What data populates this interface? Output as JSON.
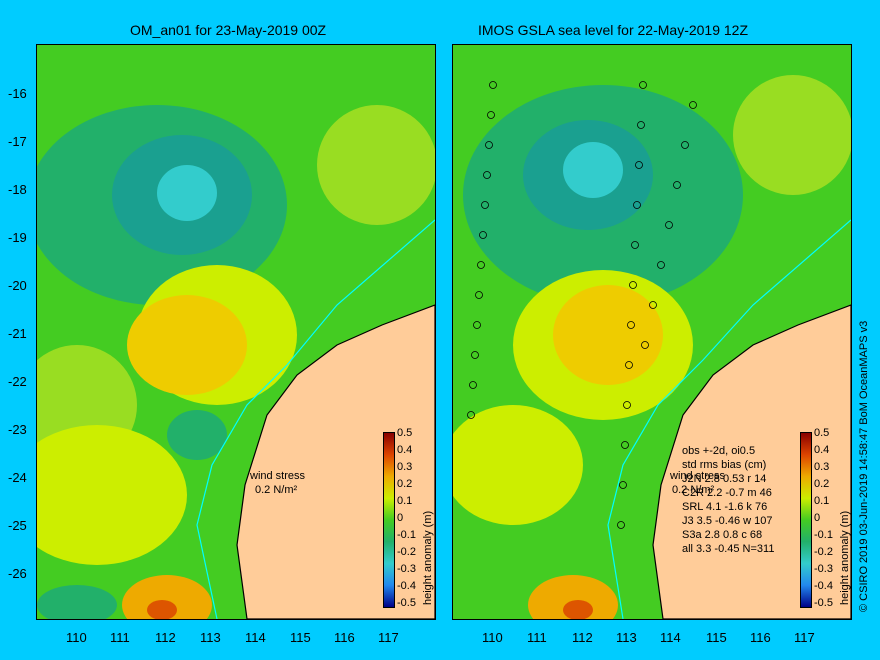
{
  "left_panel": {
    "title": "OM_an01 for 23-May-2019 00Z",
    "wind_label": "wind stress",
    "wind_scale": "0.2 N/m²"
  },
  "right_panel": {
    "title": "IMOS GSLA sea level  for 22-May-2019 12Z",
    "wind_label": "wind stress",
    "wind_scale": "0.2 N/m²",
    "stats": {
      "header1": "obs +-2d, oi0.5",
      "header2": "std rms bias (cm)",
      "rows": [
        "J2N    2.8  0.53  r 14",
        "C2R    2.2  -0.7  m 46",
        "SRL    4.1  -1.6  k 76",
        "J3     3.5  -0.46  w 107",
        "S3a    2.8  0.8  c 68",
        "all    3.3  -0.45  N=311"
      ]
    }
  },
  "axes": {
    "y_ticks": [
      "-16",
      "-17",
      "-18",
      "-19",
      "-20",
      "-21",
      "-22",
      "-23",
      "-24",
      "-25",
      "-26"
    ],
    "x_ticks": [
      "110",
      "111",
      "112",
      "113",
      "114",
      "115",
      "116",
      "117"
    ]
  },
  "colorbar": {
    "label": "height anomaly (m)",
    "ticks": [
      "0.5",
      "0.4",
      "0.3",
      "0.2",
      "0.1",
      "0",
      "-0.1",
      "-0.2",
      "-0.3",
      "-0.4",
      "-0.5"
    ]
  },
  "credit": "© CSIRO 2019  03-Jun-2019 14:58:47 BoM OceanMAPS v3",
  "colors": {
    "background": "#00ccff",
    "land": "#ffcc99",
    "field_base": "#44cc22"
  }
}
